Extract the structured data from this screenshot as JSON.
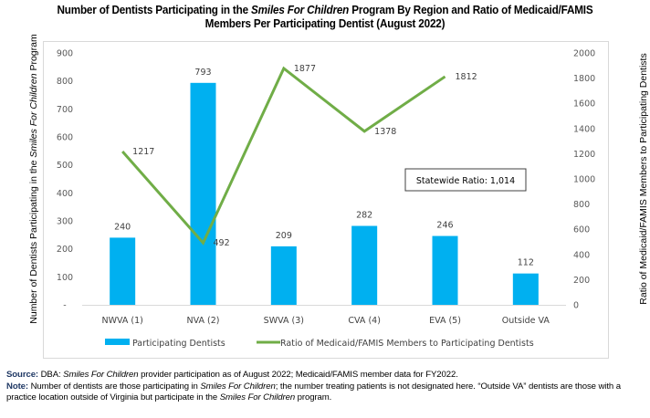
{
  "chart_data": {
    "type": "bar",
    "combo": "bar+line",
    "title_parts": [
      {
        "text": "Number of Dentists Participating in the ",
        "italic": false
      },
      {
        "text": "Smiles For Children",
        "italic": true
      },
      {
        "text": " Program By Region and Ratio of Medicaid/FAMIS",
        "italic": false
      },
      {
        "text": "\nMembers Per Participating Dentist (August 2022)",
        "italic": false
      }
    ],
    "categories": [
      "NWVA (1)",
      "NVA (2)",
      "SWVA (3)",
      "CVA (4)",
      "EVA (5)",
      "Outside VA"
    ],
    "series": [
      {
        "name": "Participating Dentists",
        "type": "bar",
        "axis": "left",
        "color": "#00b0f0",
        "values": [
          240,
          793,
          209,
          282,
          246,
          112
        ],
        "labels": [
          "240",
          "793",
          "209",
          "282",
          "246",
          "112"
        ]
      },
      {
        "name": "Ratio of Medicaid/FAMIS Members to Participating Dentists",
        "type": "line",
        "axis": "right",
        "color": "#70ad47",
        "values": [
          1217,
          492,
          1877,
          1378,
          1812,
          null
        ],
        "labels": [
          "1217",
          "492",
          "1877",
          "1378",
          "1812",
          ""
        ]
      }
    ],
    "ylabel_parts": [
      {
        "text": "Number of Dentists Participating in the ",
        "italic": false
      },
      {
        "text": "Smiles For Children",
        "italic": true
      },
      {
        "text": " Program",
        "italic": false
      }
    ],
    "y2label": "Ratio of Medicaid/FAMIS Members to Participating Dentists",
    "xlabel": "",
    "ylim": [
      0,
      900
    ],
    "y2lim": [
      0,
      2000
    ],
    "yticks": [
      0,
      100,
      200,
      300,
      400,
      500,
      600,
      700,
      800,
      900
    ],
    "ytick_labels": [
      "-",
      "100",
      "200",
      "300",
      "400",
      "500",
      "600",
      "700",
      "800",
      "900"
    ],
    "y2ticks": [
      0,
      200,
      400,
      600,
      800,
      1000,
      1200,
      1400,
      1600,
      1800,
      2000
    ],
    "y2tick_labels": [
      "0",
      "200",
      "400",
      "600",
      "800",
      "1000",
      "1200",
      "1400",
      "1600",
      "1800",
      "2000"
    ],
    "grid": false,
    "legend_position": "bottom",
    "annotation": "Statewide Ratio:  1,014"
  },
  "footnotes": {
    "source_label": "Source:",
    "source_parts": [
      {
        "text": "  DBA: ",
        "italic": false
      },
      {
        "text": "Smiles For Children",
        "italic": true
      },
      {
        "text": " provider participation as of August 2022; Medicaid/FAMIS member data for FY2022.",
        "italic": false
      }
    ],
    "note_label": "Note:",
    "note_parts": [
      {
        "text": " Number of dentists are those participating in ",
        "italic": false
      },
      {
        "text": "Smiles For Children",
        "italic": true
      },
      {
        "text": "; the number treating patients is not designated here. “Outside VA” dentists are those with a practice location outside of Virginia but participate in the ",
        "italic": false
      },
      {
        "text": "Smiles For Children",
        "italic": true
      },
      {
        "text": " program.",
        "italic": false
      }
    ]
  }
}
